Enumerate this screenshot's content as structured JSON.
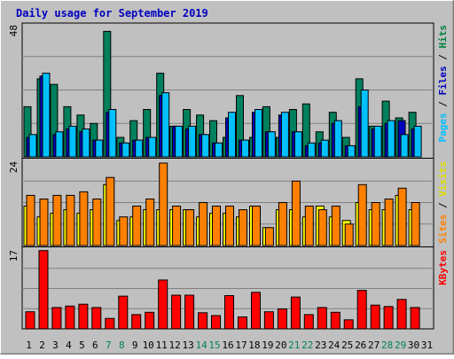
{
  "chart_data": {
    "type": "bar",
    "title": "Daily usage for September 2019",
    "categories": [
      "1",
      "2",
      "3",
      "4",
      "5",
      "6",
      "7",
      "8",
      "9",
      "10",
      "11",
      "12",
      "13",
      "14",
      "15",
      "16",
      "17",
      "18",
      "19",
      "20",
      "21",
      "22",
      "23",
      "24",
      "25",
      "26",
      "27",
      "28",
      "29",
      "30",
      "31"
    ],
    "weekend_days": [
      "7",
      "8",
      "14",
      "15",
      "21",
      "22",
      "28",
      "29"
    ],
    "panels": [
      {
        "id": "hits-files-pages",
        "ymax_label": "48",
        "ylim": [
          0,
          48
        ],
        "right_label": [
          {
            "text": "Pages",
            "color": "#00c0ff"
          },
          {
            "text": " / ",
            "color": "#000000"
          },
          {
            "text": "Files",
            "color": "#0000c0"
          },
          {
            "text": " / ",
            "color": "#000000"
          },
          {
            "text": "Hits",
            "color": "#008040"
          }
        ],
        "series": [
          {
            "name": "Hits",
            "color": "#00805c",
            "values": [
              18,
              28,
              26,
              18,
              15,
              12,
              45,
              7,
              13,
              17,
              30,
              11,
              17,
              15,
              13,
              7,
              22,
              7,
              18,
              7,
              17,
              19,
              9,
              16,
              7,
              28,
              11,
              20,
              14,
              16,
              0
            ]
          },
          {
            "name": "Files",
            "color": "#0000c0",
            "values": [
              7,
              29,
              8,
              10,
              9,
              6,
              16,
              5,
              6,
              7,
              22,
              11,
              10,
              8,
              5,
              14,
              6,
              16,
              9,
              15,
              9,
              4,
              5,
              12,
              4,
              18,
              10,
              12,
              13,
              10,
              0
            ]
          },
          {
            "name": "Pages",
            "color": "#00c0ff",
            "values": [
              8,
              30,
              9,
              11,
              10,
              6,
              17,
              5,
              6,
              7,
              23,
              11,
              11,
              8,
              5,
              16,
              6,
              17,
              9,
              16,
              9,
              5,
              6,
              13,
              4,
              24,
              11,
              13,
              8,
              11,
              0
            ]
          }
        ]
      },
      {
        "id": "visits-sites",
        "ymax_label": "24",
        "ylim": [
          0,
          24
        ],
        "right_label": [
          {
            "text": "Sites",
            "color": "#ff8000"
          },
          {
            "text": " / ",
            "color": "#000000"
          },
          {
            "text": "Visits",
            "color": "#e0e000"
          }
        ],
        "series": [
          {
            "name": "Visits",
            "color": "#ffff00",
            "values": [
              11,
              8,
              9,
              10,
              9,
              10,
              17,
              7,
              8,
              10,
              10,
              10,
              10,
              8,
              9,
              9,
              8,
              11,
              5,
              10,
              10,
              8,
              11,
              8,
              7,
              12,
              10,
              10,
              14,
              10,
              0
            ]
          },
          {
            "name": "Sites",
            "color": "#ff8000",
            "values": [
              14,
              13,
              14,
              14,
              15,
              13,
              19,
              8,
              11,
              13,
              23,
              11,
              10,
              12,
              11,
              11,
              10,
              11,
              5,
              12,
              18,
              11,
              10,
              11,
              6,
              17,
              12,
              13,
              16,
              12,
              0
            ]
          }
        ]
      },
      {
        "id": "kbytes",
        "ymax_label": "17",
        "ylim": [
          0,
          17
        ],
        "right_label": [
          {
            "text": "KBytes",
            "color": "#ff0000"
          }
        ],
        "series": [
          {
            "name": "KBytes",
            "color": "#ff0000",
            "values": [
              3.6,
              16.5,
              4.5,
              4.8,
              5.2,
              4.5,
              2.2,
              6.9,
              3,
              3.5,
              10.3,
              7.1,
              7.1,
              3.4,
              2.8,
              7.0,
              2.5,
              7.7,
              3.6,
              4.2,
              6.7,
              3.0,
              4.5,
              3.5,
              1.9,
              8.1,
              5.0,
              4.7,
              6.2,
              4.5,
              0
            ]
          }
        ]
      }
    ]
  }
}
